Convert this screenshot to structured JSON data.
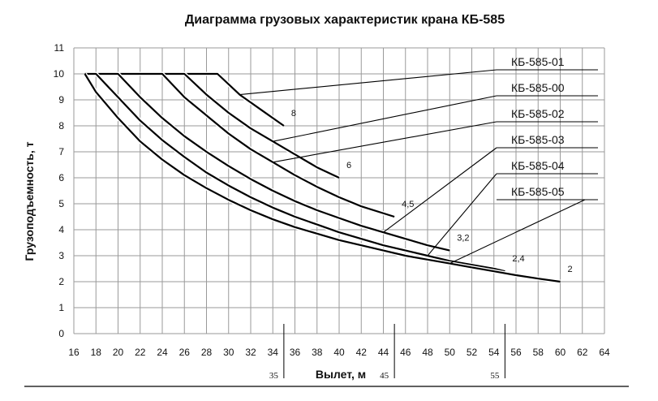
{
  "chart_data": {
    "type": "line",
    "title": "Диаграмма грузовых характеристик крана КБ-585",
    "xlabel": "Вылет, м",
    "ylabel": "Грузоподъемность, т",
    "xlim": [
      16,
      64
    ],
    "ylim": [
      0,
      11
    ],
    "x_ticks": [
      16,
      18,
      20,
      22,
      24,
      26,
      28,
      30,
      32,
      34,
      36,
      38,
      40,
      42,
      44,
      46,
      48,
      50,
      52,
      54,
      56,
      58,
      60,
      62,
      64
    ],
    "y_ticks": [
      0,
      1,
      2,
      3,
      4,
      5,
      6,
      7,
      8,
      9,
      10,
      11
    ],
    "grid": true,
    "series": [
      {
        "name": "КБ-585-01",
        "end_label": "8",
        "x": [
          17,
          29,
          31,
          33,
          35
        ],
        "y": [
          10,
          10,
          9.2,
          8.6,
          8
        ]
      },
      {
        "name": "КБ-585-00",
        "end_label": "6",
        "x": [
          17,
          26,
          28,
          30,
          32,
          34,
          36,
          38,
          40
        ],
        "y": [
          10,
          10,
          9.2,
          8.5,
          7.9,
          7.4,
          6.9,
          6.4,
          6
        ]
      },
      {
        "name": "КБ-585-02",
        "end_label": "4,5",
        "x": [
          17,
          24,
          26,
          28,
          30,
          32,
          34,
          36,
          38,
          40,
          42,
          45
        ],
        "y": [
          10,
          10,
          9.1,
          8.4,
          7.7,
          7.1,
          6.6,
          6.1,
          5.65,
          5.25,
          4.9,
          4.5
        ]
      },
      {
        "name": "КБ-585-03",
        "end_label": "3,2",
        "x": [
          17,
          20,
          22,
          24,
          26,
          28,
          30,
          32,
          34,
          36,
          38,
          40,
          42,
          44,
          46,
          48,
          50
        ],
        "y": [
          10,
          10,
          9.1,
          8.3,
          7.6,
          7.0,
          6.45,
          5.95,
          5.5,
          5.1,
          4.75,
          4.45,
          4.15,
          3.9,
          3.65,
          3.4,
          3.2
        ]
      },
      {
        "name": "КБ-585-04",
        "end_label": "2,4",
        "x": [
          17,
          18,
          20,
          22,
          24,
          26,
          28,
          30,
          32,
          34,
          36,
          38,
          40,
          42,
          44,
          46,
          48,
          50,
          52,
          54,
          55
        ],
        "y": [
          10,
          10,
          9.1,
          8.2,
          7.45,
          6.8,
          6.2,
          5.7,
          5.25,
          4.85,
          4.5,
          4.2,
          3.9,
          3.65,
          3.4,
          3.2,
          3.0,
          2.8,
          2.65,
          2.5,
          2.4
        ]
      },
      {
        "name": "КБ-585-05",
        "end_label": "2",
        "x": [
          17,
          18,
          20,
          22,
          24,
          26,
          28,
          30,
          32,
          34,
          36,
          38,
          40,
          42,
          44,
          46,
          48,
          50,
          52,
          54,
          56,
          58,
          60
        ],
        "y": [
          10,
          9.3,
          8.3,
          7.4,
          6.7,
          6.1,
          5.6,
          5.15,
          4.75,
          4.4,
          4.1,
          3.85,
          3.6,
          3.4,
          3.2,
          3.0,
          2.85,
          2.7,
          2.55,
          2.4,
          2.25,
          2.12,
          2
        ]
      }
    ],
    "markers": [
      {
        "x": 35,
        "label": "35"
      },
      {
        "x": 45,
        "label": "45"
      },
      {
        "x": 55,
        "label": "55"
      }
    ],
    "legend": "right"
  }
}
